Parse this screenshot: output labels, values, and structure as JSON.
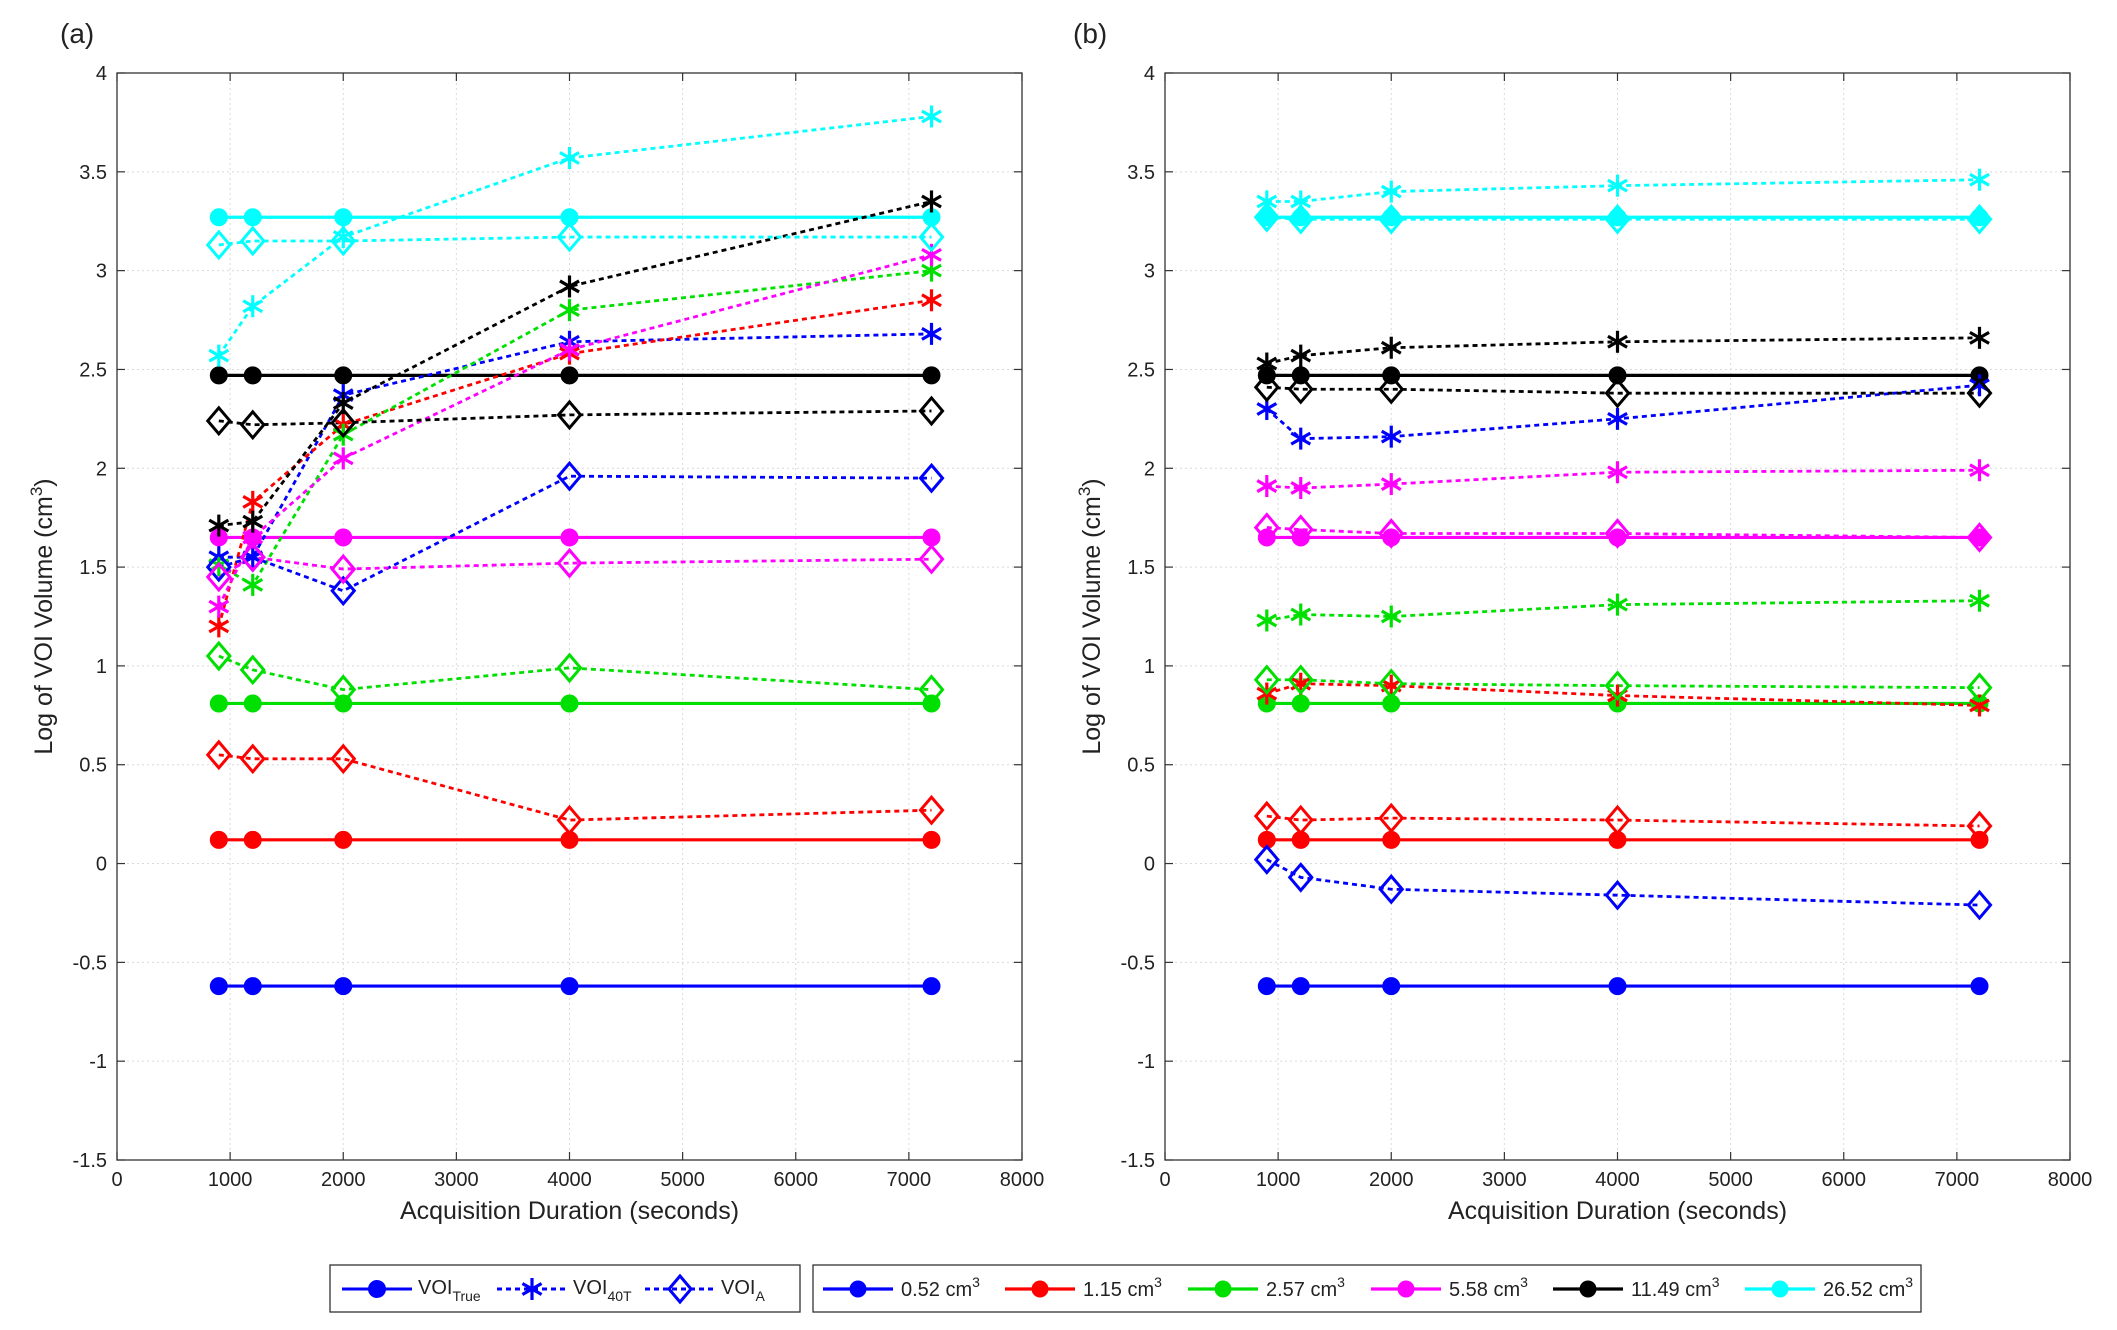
{
  "chart_data": [
    {
      "type": "line",
      "panel_label": "(a)",
      "title": "",
      "xlabel": "Acquisition Duration (seconds)",
      "ylabel_main": "Log of VOI Volume (cm",
      "ylabel_sup": "3",
      "ylabel_end": ")",
      "xlim": [
        0,
        8000
      ],
      "ylim": [
        -1.5,
        4
      ],
      "xticks": [
        0,
        1000,
        2000,
        3000,
        4000,
        5000,
        6000,
        7000,
        8000
      ],
      "yticks": [
        -1.5,
        -1,
        -0.5,
        0,
        0.5,
        1,
        1.5,
        2,
        2.5,
        3,
        3.5,
        4
      ],
      "xtick_labels": [
        "0",
        "1000",
        "2000",
        "3000",
        "4000",
        "5000",
        "6000",
        "7000",
        "8000"
      ],
      "ytick_labels": [
        "-1.5",
        "-1",
        "-0.5",
        "0",
        "0.5",
        "1",
        "1.5",
        "2",
        "2.5",
        "3",
        "3.5",
        "4"
      ],
      "grid": true,
      "x": [
        900,
        1200,
        2000,
        4000,
        7200
      ],
      "series": [
        {
          "name": "0.52 cm3 VOI True",
          "size": "0.52",
          "method": "true",
          "values": [
            -0.62,
            -0.62,
            -0.62,
            -0.62,
            -0.62
          ]
        },
        {
          "name": "1.15 cm3 VOI True",
          "size": "1.15",
          "method": "true",
          "values": [
            0.12,
            0.12,
            0.12,
            0.12,
            0.12
          ]
        },
        {
          "name": "2.57 cm3 VOI True",
          "size": "2.57",
          "method": "true",
          "values": [
            0.81,
            0.81,
            0.81,
            0.81,
            0.81
          ]
        },
        {
          "name": "5.58 cm3 VOI True",
          "size": "5.58",
          "method": "true",
          "values": [
            1.65,
            1.65,
            1.65,
            1.65,
            1.65
          ]
        },
        {
          "name": "11.49 cm3 VOI True",
          "size": "11.49",
          "method": "true",
          "values": [
            2.47,
            2.47,
            2.47,
            2.47,
            2.47
          ]
        },
        {
          "name": "26.52 cm3 VOI True",
          "size": "26.52",
          "method": "true",
          "values": [
            3.27,
            3.27,
            3.27,
            3.27,
            3.27
          ]
        },
        {
          "name": "0.52 cm3 VOI 40T",
          "size": "0.52",
          "method": "40T",
          "values": [
            1.55,
            1.55,
            2.37,
            2.64,
            2.68
          ]
        },
        {
          "name": "1.15 cm3 VOI 40T",
          "size": "1.15",
          "method": "40T",
          "values": [
            1.2,
            1.83,
            2.22,
            2.58,
            2.85
          ]
        },
        {
          "name": "2.57 cm3 VOI 40T",
          "size": "2.57",
          "method": "40T",
          "values": [
            1.51,
            1.41,
            2.17,
            2.8,
            3.0
          ]
        },
        {
          "name": "5.58 cm3 VOI 40T",
          "size": "5.58",
          "method": "40T",
          "values": [
            1.3,
            1.65,
            2.05,
            2.6,
            3.08
          ]
        },
        {
          "name": "11.49 cm3 VOI 40T",
          "size": "11.49",
          "method": "40T",
          "values": [
            1.71,
            1.73,
            2.33,
            2.92,
            3.35
          ]
        },
        {
          "name": "26.52 cm3 VOI 40T",
          "size": "26.52",
          "method": "40T",
          "values": [
            2.57,
            2.82,
            3.17,
            3.57,
            3.78
          ]
        },
        {
          "name": "0.52 cm3 VOI A",
          "size": "0.52",
          "method": "A",
          "values": [
            1.5,
            1.55,
            1.38,
            1.96,
            1.95
          ]
        },
        {
          "name": "1.15 cm3 VOI A",
          "size": "1.15",
          "method": "A",
          "values": [
            0.55,
            0.53,
            0.53,
            0.22,
            0.27
          ]
        },
        {
          "name": "2.57 cm3 VOI A",
          "size": "2.57",
          "method": "A",
          "values": [
            1.05,
            0.98,
            0.88,
            0.99,
            0.88
          ]
        },
        {
          "name": "5.58 cm3 VOI A",
          "size": "5.58",
          "method": "A",
          "values": [
            1.45,
            1.55,
            1.49,
            1.52,
            1.54
          ]
        },
        {
          "name": "11.49 cm3 VOI A",
          "size": "11.49",
          "method": "A",
          "values": [
            2.24,
            2.22,
            2.23,
            2.27,
            2.29
          ]
        },
        {
          "name": "26.52 cm3 VOI A",
          "size": "26.52",
          "method": "A",
          "values": [
            3.13,
            3.15,
            3.15,
            3.17,
            3.17
          ]
        }
      ]
    },
    {
      "type": "line",
      "panel_label": "(b)",
      "title": "",
      "xlabel": "Acquisition Duration (seconds)",
      "ylabel_main": "Log of VOI Volume (cm",
      "ylabel_sup": "3",
      "ylabel_end": ")",
      "xlim": [
        0,
        8000
      ],
      "ylim": [
        -1.5,
        4
      ],
      "xticks": [
        0,
        1000,
        2000,
        3000,
        4000,
        5000,
        6000,
        7000,
        8000
      ],
      "yticks": [
        -1.5,
        -1,
        -0.5,
        0,
        0.5,
        1,
        1.5,
        2,
        2.5,
        3,
        3.5,
        4
      ],
      "xtick_labels": [
        "0",
        "1000",
        "2000",
        "3000",
        "4000",
        "5000",
        "6000",
        "7000",
        "8000"
      ],
      "ytick_labels": [
        "-1.5",
        "-1",
        "-0.5",
        "0",
        "0.5",
        "1",
        "1.5",
        "2",
        "2.5",
        "3",
        "3.5",
        "4"
      ],
      "grid": true,
      "x": [
        900,
        1200,
        2000,
        4000,
        7200
      ],
      "series": [
        {
          "name": "0.52 cm3 VOI True",
          "size": "0.52",
          "method": "true",
          "values": [
            -0.62,
            -0.62,
            -0.62,
            -0.62,
            -0.62
          ]
        },
        {
          "name": "1.15 cm3 VOI True",
          "size": "1.15",
          "method": "true",
          "values": [
            0.12,
            0.12,
            0.12,
            0.12,
            0.12
          ]
        },
        {
          "name": "2.57 cm3 VOI True",
          "size": "2.57",
          "method": "true",
          "values": [
            0.81,
            0.81,
            0.81,
            0.81,
            0.81
          ]
        },
        {
          "name": "5.58 cm3 VOI True",
          "size": "5.58",
          "method": "true",
          "values": [
            1.65,
            1.65,
            1.65,
            1.65,
            1.65
          ]
        },
        {
          "name": "11.49 cm3 VOI True",
          "size": "11.49",
          "method": "true",
          "values": [
            2.47,
            2.47,
            2.47,
            2.47,
            2.47
          ]
        },
        {
          "name": "26.52 cm3 VOI True",
          "size": "26.52",
          "method": "true",
          "values": [
            3.27,
            3.27,
            3.27,
            3.27,
            3.27
          ]
        },
        {
          "name": "0.52 cm3 VOI 40T",
          "size": "0.52",
          "method": "40T",
          "values": [
            2.3,
            2.15,
            2.16,
            2.25,
            2.42
          ]
        },
        {
          "name": "1.15 cm3 VOI 40T",
          "size": "1.15",
          "method": "40T",
          "values": [
            0.86,
            0.91,
            0.9,
            0.85,
            0.8
          ]
        },
        {
          "name": "2.57 cm3 VOI 40T",
          "size": "2.57",
          "method": "40T",
          "values": [
            1.23,
            1.26,
            1.25,
            1.31,
            1.33
          ]
        },
        {
          "name": "5.58 cm3 VOI 40T",
          "size": "5.58",
          "method": "40T",
          "values": [
            1.91,
            1.9,
            1.92,
            1.98,
            1.99
          ]
        },
        {
          "name": "11.49 cm3 VOI 40T",
          "size": "11.49",
          "method": "40T",
          "values": [
            2.53,
            2.57,
            2.61,
            2.64,
            2.66
          ]
        },
        {
          "name": "26.52 cm3 VOI 40T",
          "size": "26.52",
          "method": "40T",
          "values": [
            3.35,
            3.35,
            3.4,
            3.43,
            3.46
          ]
        },
        {
          "name": "0.52 cm3 VOI A",
          "size": "0.52",
          "method": "A",
          "values": [
            0.02,
            -0.07,
            -0.13,
            -0.16,
            -0.21
          ]
        },
        {
          "name": "1.15 cm3 VOI A",
          "size": "1.15",
          "method": "A",
          "values": [
            0.24,
            0.22,
            0.23,
            0.22,
            0.19
          ]
        },
        {
          "name": "2.57 cm3 VOI A",
          "size": "2.57",
          "method": "A",
          "values": [
            0.93,
            0.93,
            0.91,
            0.9,
            0.89
          ]
        },
        {
          "name": "5.58 cm3 VOI A",
          "size": "5.58",
          "method": "A",
          "values": [
            1.7,
            1.69,
            1.67,
            1.67,
            1.65
          ]
        },
        {
          "name": "11.49 cm3 VOI A",
          "size": "11.49",
          "method": "A",
          "values": [
            2.41,
            2.4,
            2.4,
            2.38,
            2.38
          ]
        },
        {
          "name": "26.52 cm3 VOI A",
          "size": "26.52",
          "method": "A",
          "values": [
            3.27,
            3.26,
            3.26,
            3.26,
            3.26
          ]
        }
      ]
    }
  ],
  "colors": {
    "0.52": "#0000FF",
    "1.15": "#FF0000",
    "2.57": "#00E000",
    "5.58": "#FF00FF",
    "11.49": "#000000",
    "26.52": "#00FFFF"
  },
  "legend_methods": [
    {
      "method": "true",
      "main": "VOI",
      "sub": "True"
    },
    {
      "method": "40T",
      "main": "VOI",
      "sub": "40T"
    },
    {
      "method": "A",
      "main": "VOI",
      "sub": "A"
    }
  ],
  "legend_sizes": [
    {
      "size": "0.52",
      "main": "0.52 cm",
      "sup": "3"
    },
    {
      "size": "1.15",
      "main": "1.15 cm",
      "sup": "3"
    },
    {
      "size": "2.57",
      "main": "2.57 cm",
      "sup": "3"
    },
    {
      "size": "5.58",
      "main": "5.58 cm",
      "sup": "3"
    },
    {
      "size": "11.49",
      "main": "11.49 cm",
      "sup": "3"
    },
    {
      "size": "26.52",
      "main": "26.52 cm",
      "sup": "3"
    }
  ]
}
